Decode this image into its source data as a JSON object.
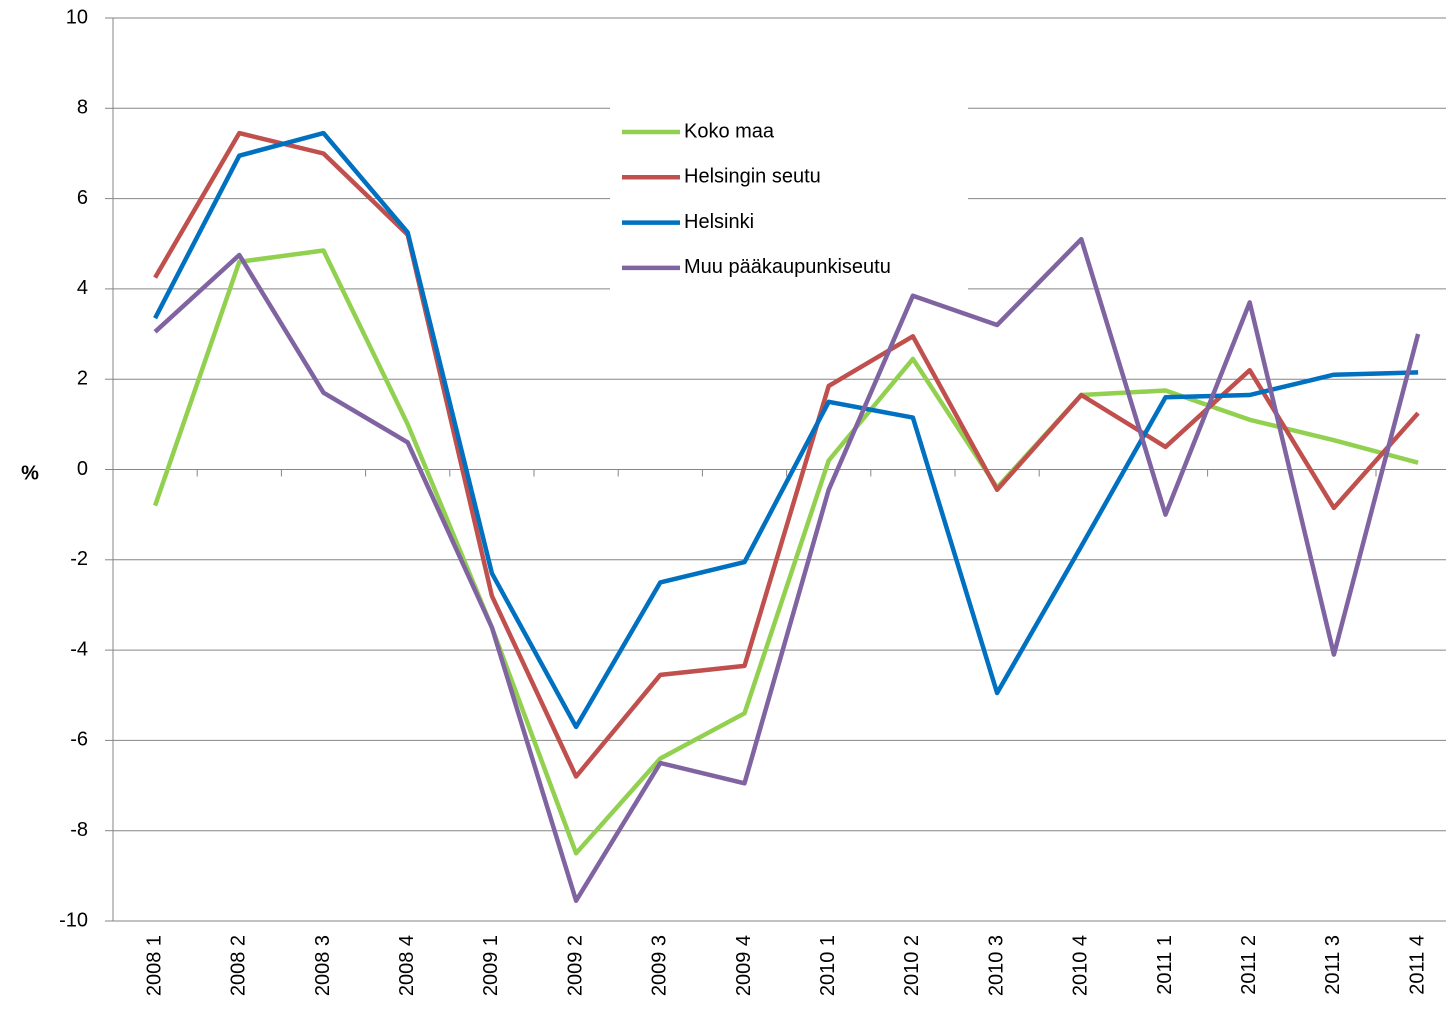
{
  "chart_data": {
    "type": "line",
    "ylabel": "%",
    "categories": [
      "2008 1",
      "2008 2",
      "2008 3",
      "2008 4",
      "2009 1",
      "2009 2",
      "2009 3",
      "2009 4",
      "2010 1",
      "2010 2",
      "2010 3",
      "2010 4",
      "2011 1",
      "2011 2",
      "2011 3",
      "2011 4"
    ],
    "series": [
      {
        "name": "Koko maa",
        "color": "#92d050",
        "values": [
          -0.8,
          4.6,
          4.85,
          1.0,
          -3.5,
          -8.5,
          -6.4,
          -5.4,
          0.2,
          2.45,
          -0.4,
          1.65,
          1.75,
          1.1,
          0.65,
          0.15
        ]
      },
      {
        "name": "Helsingin seutu",
        "color": "#c0504d",
        "values": [
          4.25,
          7.45,
          7.0,
          5.2,
          -2.8,
          -6.8,
          -4.55,
          -4.35,
          1.85,
          2.95,
          -0.45,
          1.65,
          0.5,
          2.2,
          -0.85,
          1.25
        ]
      },
      {
        "name": "Helsinki",
        "color": "#0070c0",
        "values": [
          3.35,
          6.95,
          7.45,
          5.25,
          -2.3,
          -5.7,
          -2.5,
          -2.05,
          1.5,
          1.15,
          -4.95,
          -1.7,
          1.6,
          1.65,
          2.1,
          2.15
        ]
      },
      {
        "name": "Muu pääkaupunkiseutu",
        "color": "#8064a2",
        "values": [
          3.05,
          4.75,
          1.7,
          0.6,
          -3.5,
          -9.55,
          -6.5,
          -6.95,
          -0.45,
          3.85,
          3.2,
          5.1,
          -1.0,
          3.7,
          -4.1,
          3.0
        ]
      }
    ],
    "ylim": [
      -10,
      10
    ],
    "yticks": [
      -10,
      -8,
      -6,
      -4,
      -2,
      0,
      2,
      4,
      6,
      8,
      10
    ],
    "grid": true
  }
}
